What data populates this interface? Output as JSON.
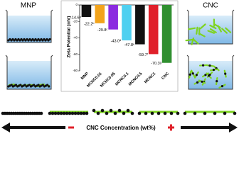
{
  "chart_data": {
    "type": "bar",
    "y_label": "Zeta Potential (mV)",
    "categories": [
      "MNP",
      "MCNC0.01",
      "MCNC0.05",
      "MCNC0.1",
      "MCNC0.5",
      "MCNC1",
      "CNC"
    ],
    "values": [
      -14.6,
      -22.2,
      -29.8,
      -43.0,
      -47.8,
      -59.7,
      -70.3
    ],
    "value_labels": [
      "-14.6ᵃ",
      "-22.2ᵇ",
      "-29.8ᶜ",
      "-43.0ᵈ",
      "-47.8ᵉ",
      "-59.7ᶠ",
      "-70.3ᵍ"
    ],
    "colors": [
      "#111111",
      "#f2a31b",
      "#8b2be0",
      "#4fd0f0",
      "#111111",
      "#e0202a",
      "#2f8f2f"
    ],
    "ylim": [
      -80,
      0
    ],
    "yticks": [
      0,
      -20,
      -40,
      -60,
      -80
    ]
  },
  "labels": {
    "left_title": "MNP",
    "right_title": "CNC",
    "axis_caption": "CNC Concentration (wt%)"
  }
}
